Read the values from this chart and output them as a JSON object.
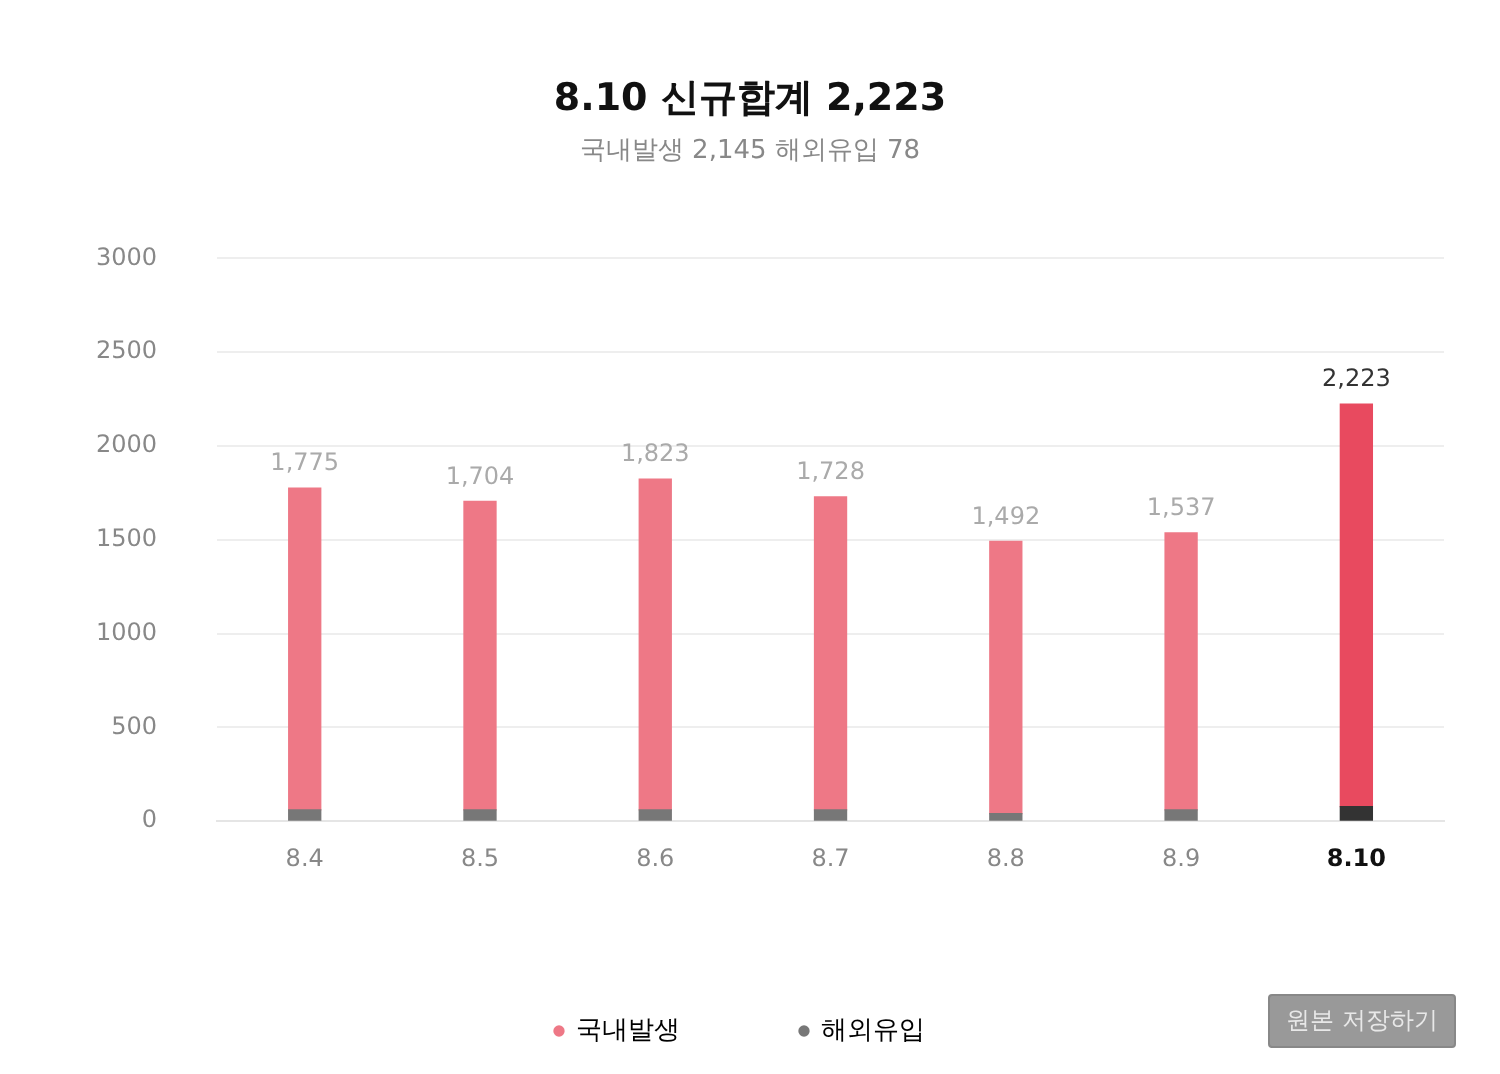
{
  "chart_data": {
    "type": "bar",
    "title": "8.10 신규합계 2,223",
    "subtitle": "국내발생 2,145  해외유입 78",
    "categories": [
      "8.4",
      "8.5",
      "8.6",
      "8.7",
      "8.8",
      "8.9",
      "8.10"
    ],
    "stacked": true,
    "series": [
      {
        "name": "해외유입",
        "color": "#777777",
        "colors": [
          "#777777",
          "#777777",
          "#777777",
          "#777777",
          "#777777",
          "#777777",
          "#333333"
        ],
        "values": [
          60,
          60,
          60,
          60,
          40,
          60,
          78
        ]
      },
      {
        "name": "국내발생",
        "color": "#ee7886",
        "colors": [
          "#ee7886",
          "#ee7886",
          "#ee7886",
          "#ee7886",
          "#ee7886",
          "#ee7886",
          "#e84a5f"
        ],
        "values": [
          1715,
          1644,
          1763,
          1668,
          1452,
          1477,
          2145
        ]
      }
    ],
    "totals": [
      "1,775",
      "1,704",
      "1,823",
      "1,728",
      "1,492",
      "1,537",
      "2,223"
    ],
    "ylim": [
      0,
      3000
    ],
    "yticks": [
      0,
      500,
      1000,
      1500,
      2000,
      2500,
      3000
    ],
    "grid": "y",
    "legend": "bottom",
    "annotations": [
      "원본 저장하기"
    ]
  }
}
